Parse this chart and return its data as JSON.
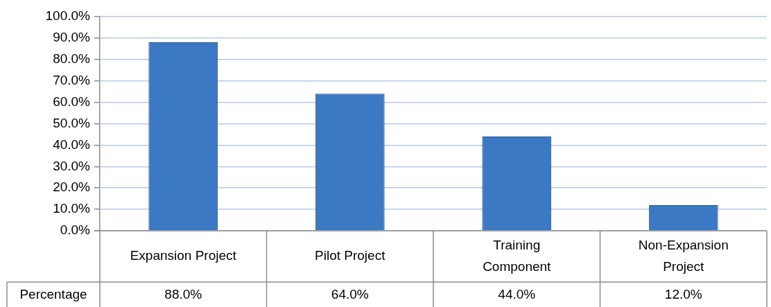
{
  "chart_data": {
    "type": "bar",
    "categories": [
      "Expansion Project",
      "Pilot Project",
      "Training Component",
      "Non-Expansion Project"
    ],
    "series": [
      {
        "name": "Percentage",
        "color": "#3c79c4",
        "values": [
          88,
          64,
          44,
          12
        ],
        "value_labels": [
          "88.0%",
          "64.0%",
          "44.0%",
          "12.0%"
        ]
      }
    ],
    "ylim": [
      0,
      100
    ],
    "yticks": [
      {
        "value": 0,
        "label": "0.0%"
      },
      {
        "value": 10,
        "label": "10.0%"
      },
      {
        "value": 20,
        "label": "20.0%"
      },
      {
        "value": 30,
        "label": "30.0%"
      },
      {
        "value": 40,
        "label": "40.0%"
      },
      {
        "value": 50,
        "label": "50.0%"
      },
      {
        "value": 60,
        "label": "60.0%"
      },
      {
        "value": 70,
        "label": "70.0%"
      },
      {
        "value": 80,
        "label": "80.0%"
      },
      {
        "value": 90,
        "label": "90.0%"
      },
      {
        "value": 100,
        "label": "100.0%"
      }
    ],
    "grid": "y"
  }
}
